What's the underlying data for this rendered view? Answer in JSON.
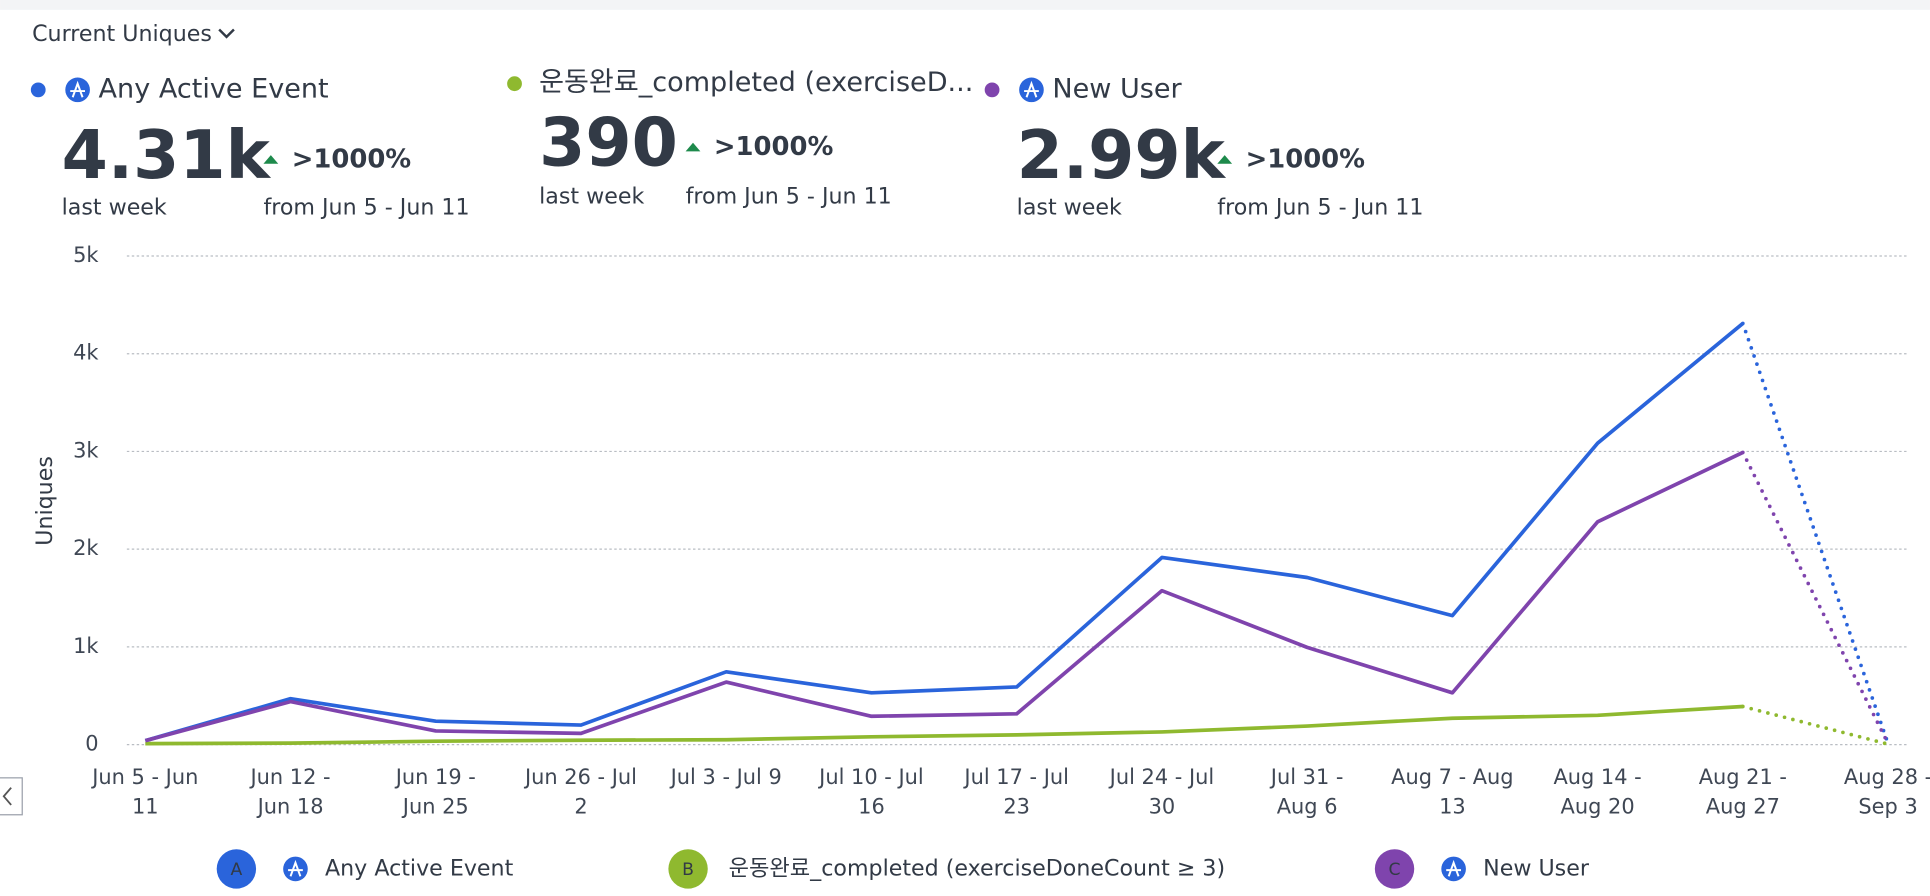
{
  "header": {
    "title": "Current Uniques"
  },
  "cards": [
    {
      "name": "Any Active Event",
      "value": "4.31k",
      "period": "last week",
      "change": ">1000%",
      "compare": "from Jun 5 - Jun 11"
    },
    {
      "name": "운동완료_completed (exerciseD...",
      "value": "390",
      "period": "last week",
      "change": ">1000%",
      "compare": "from Jun 5 - Jun 11"
    },
    {
      "name": "New User",
      "value": "2.99k",
      "period": "last week",
      "change": ">1000%",
      "compare": "from Jun 5 - Jun 11"
    }
  ],
  "chart_data": {
    "type": "line",
    "y_label": "Uniques",
    "categories": [
      [
        "Jun 5 - Jun",
        "11"
      ],
      [
        "Jun 12 -",
        "Jun 18"
      ],
      [
        "Jun 19 -",
        "Jun 25"
      ],
      [
        "Jun 26 - Jul",
        "2"
      ],
      [
        "Jul 3 - Jul 9"
      ],
      [
        "Jul 10 - Jul",
        "16"
      ],
      [
        "Jul 17 - Jul",
        "23"
      ],
      [
        "Jul 24 - Jul",
        "30"
      ],
      [
        "Jul 31 -",
        "Aug 6"
      ],
      [
        "Aug 7 - Aug",
        "13"
      ],
      [
        "Aug 14 -",
        "Aug 20"
      ],
      [
        "Aug 21 -",
        "Aug 27"
      ],
      [
        "Aug 28 -",
        "Sep 3"
      ]
    ],
    "ylim": [
      0,
      5000
    ],
    "yticks": [
      {
        "value": 0,
        "label": "0"
      },
      {
        "value": 1000,
        "label": "1k"
      },
      {
        "value": 2000,
        "label": "2k"
      },
      {
        "value": 3000,
        "label": "3k"
      },
      {
        "value": 4000,
        "label": "4k"
      },
      {
        "value": 5000,
        "label": "5k"
      }
    ],
    "grid": true,
    "dotted_last_segment": true,
    "series": [
      {
        "letter": "A",
        "name": "Any Active Event",
        "color": "#2a64db",
        "values": [
          40,
          470,
          240,
          200,
          745,
          530,
          590,
          1915,
          1710,
          1320,
          3085,
          4310,
          10
        ]
      },
      {
        "letter": "B",
        "name": "운동완료_completed (exerciseDoneCount ≥ 3)",
        "color": "#8fb92f",
        "values": [
          10,
          15,
          35,
          45,
          50,
          80,
          100,
          130,
          190,
          270,
          300,
          390,
          5
        ]
      },
      {
        "letter": "C",
        "name": "New User",
        "color": "#7f44ad",
        "values": [
          40,
          440,
          140,
          115,
          640,
          290,
          315,
          1575,
          995,
          530,
          2280,
          2990,
          10
        ]
      }
    ]
  }
}
